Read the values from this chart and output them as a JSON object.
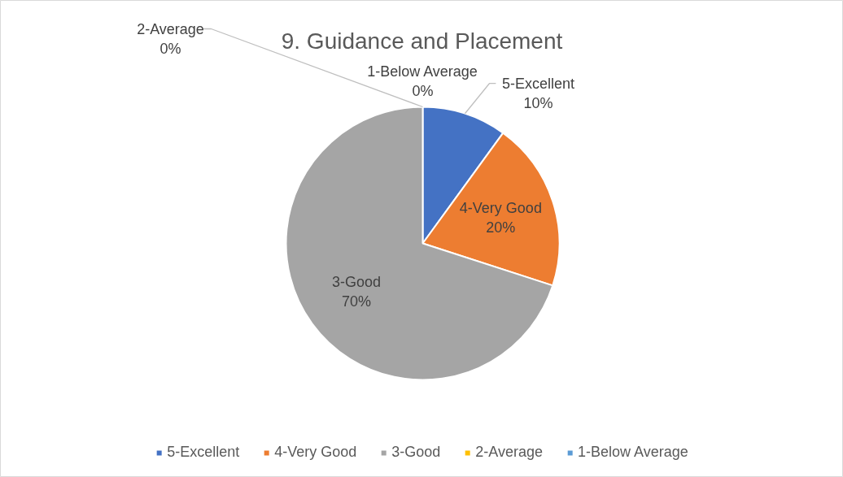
{
  "chart_data": {
    "type": "pie",
    "title": "9. Guidance and Placement",
    "categories": [
      "5-Excellent",
      "4-Very Good",
      "3-Good",
      "2-Average",
      "1-Below Average"
    ],
    "values": [
      10,
      20,
      70,
      0,
      0
    ],
    "colors": [
      "#4472c4",
      "#ed7d31",
      "#a5a5a5",
      "#ffc000",
      "#5b9bd5"
    ],
    "value_labels": [
      "10%",
      "20%",
      "70%",
      "0%",
      "0%"
    ],
    "legend": "bottom"
  }
}
